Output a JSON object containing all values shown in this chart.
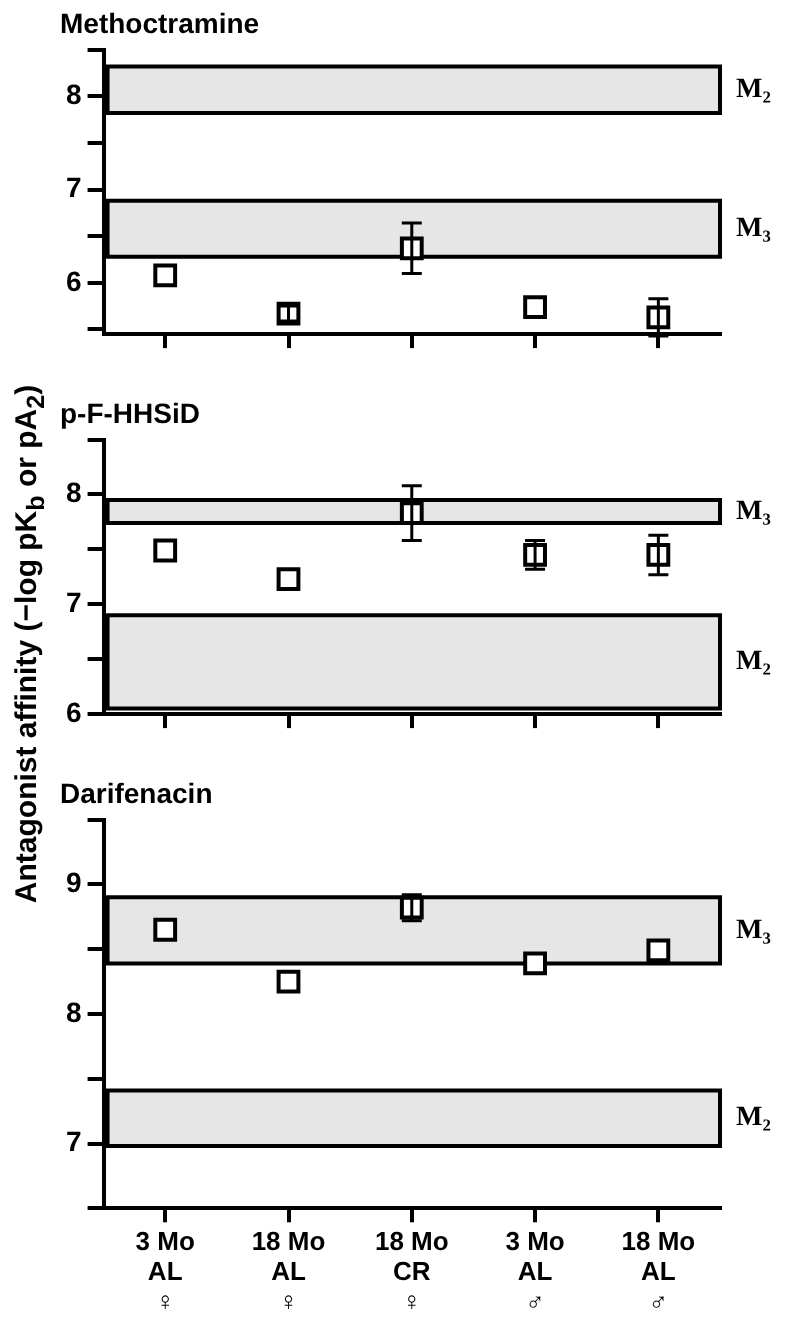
{
  "chart_data": [
    {
      "type": "scatter",
      "title": "Methoctramine",
      "categories": [
        null,
        null,
        null,
        null,
        null
      ],
      "marker": "square",
      "tick_labels": "y",
      "series": [
        {
          "color": "#000000",
          "values": [
            6.08,
            5.67,
            6.37,
            5.74,
            5.63
          ],
          "errors": [
            null,
            0.08,
            0.27,
            null,
            0.2
          ]
        }
      ],
      "ylim": [
        5.45,
        8.5
      ],
      "yticks": [
        {
          "value": 5.5,
          "label": null
        },
        6,
        {
          "value": 6.5,
          "label": null
        },
        7,
        {
          "value": 7.5,
          "label": null
        },
        8,
        {
          "value": 8.5,
          "label": null
        }
      ],
      "bands": [
        {
          "axis": "y",
          "from": 7.82,
          "to": 8.32,
          "label": "M₂",
          "color": "#e6e6e6"
        },
        {
          "axis": "y",
          "from": 6.28,
          "to": 6.88,
          "label": "M₃",
          "color": "#e6e6e6"
        }
      ]
    },
    {
      "type": "scatter",
      "title": "p-F-HHSiD",
      "ylabel": "Antagonist affinity (−log pK$_{b}$ or pA$_{2}$)",
      "categories": [
        null,
        null,
        null,
        null,
        null
      ],
      "marker": "square",
      "tick_labels": "y",
      "series": [
        {
          "color": "#000000",
          "values": [
            7.49,
            7.23,
            7.83,
            7.45,
            7.45
          ],
          "errors": [
            null,
            null,
            0.25,
            0.13,
            0.18
          ]
        }
      ],
      "ylim": [
        6,
        8.5
      ],
      "yticks": [
        6,
        {
          "value": 6.5,
          "label": null
        },
        7,
        {
          "value": 7.5,
          "label": null
        },
        8,
        {
          "value": 8.5,
          "label": null
        }
      ],
      "bands": [
        {
          "axis": "y",
          "from": 7.74,
          "to": 7.95,
          "label": "M₃",
          "color": "#e6e6e6"
        },
        {
          "axis": "y",
          "from": 6.05,
          "to": 6.9,
          "label": "M₂",
          "color": "#e6e6e6"
        }
      ]
    },
    {
      "type": "scatter",
      "title": "Darifenacin",
      "categories": [
        "3 Mo\nAL\n♀",
        "18 Mo\nAL\n♀",
        "18 Mo\nCR\n♀",
        "3 Mo\nAL\n♂",
        "18 Mo\nAL\n♂"
      ],
      "marker": "square",
      "series": [
        {
          "color": "#000000",
          "values": [
            8.65,
            8.25,
            8.82,
            8.39,
            8.49
          ],
          "errors": [
            null,
            null,
            0.1,
            null,
            null
          ]
        }
      ],
      "ylim": [
        6.5,
        9.5
      ],
      "yticks": [
        {
          "value": 6.5,
          "label": null
        },
        7,
        {
          "value": 7.5,
          "label": null
        },
        8,
        {
          "value": 8.5,
          "label": null
        },
        9,
        {
          "value": 9.5,
          "label": null
        }
      ],
      "bands": [
        {
          "axis": "y",
          "from": 8.39,
          "to": 8.9,
          "label": "M₃",
          "color": "#e6e6e6"
        },
        {
          "axis": "y",
          "from": 6.98,
          "to": 7.41,
          "label": "M₂",
          "color": "#e6e6e6"
        }
      ]
    }
  ]
}
